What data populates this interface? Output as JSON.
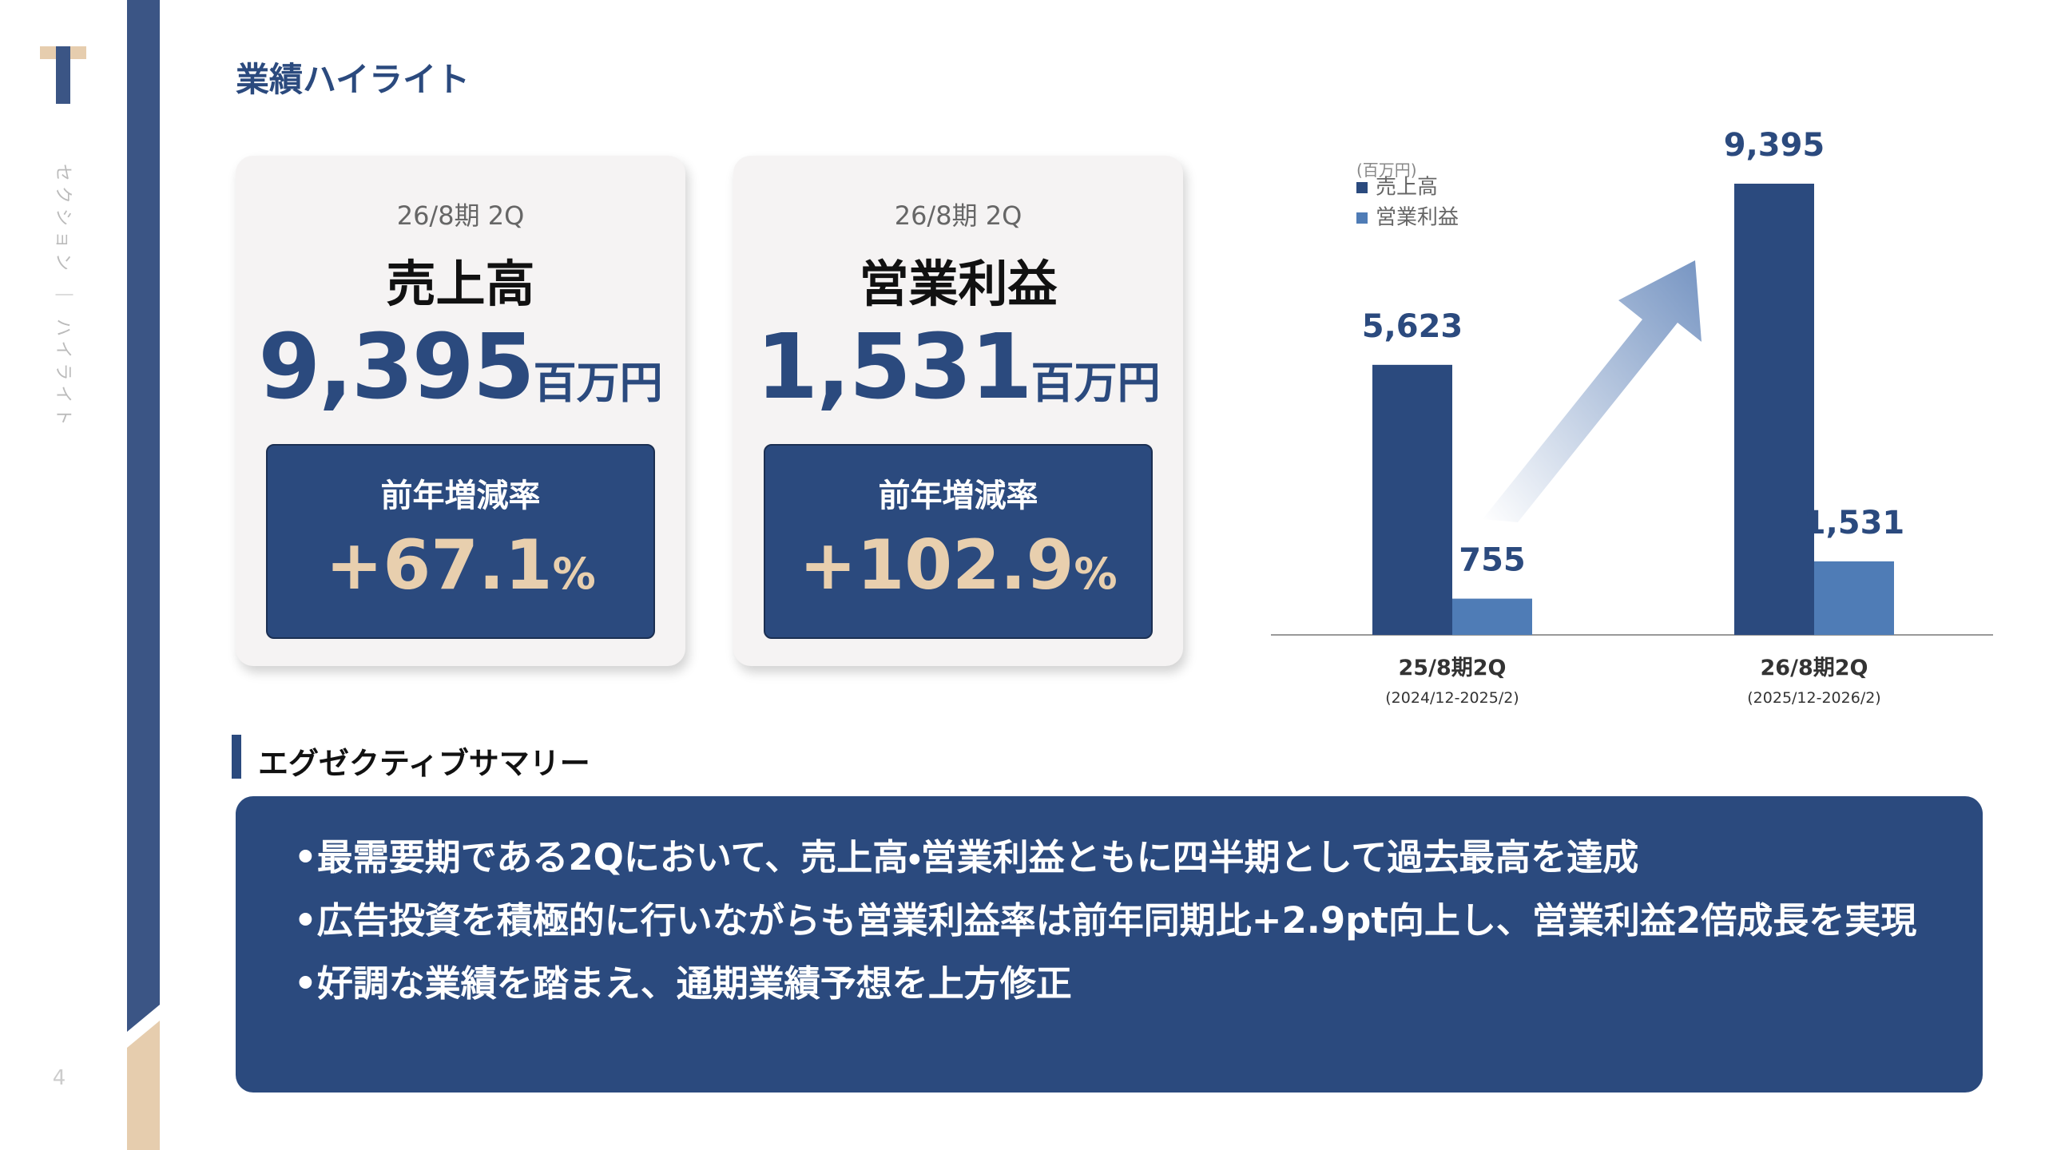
{
  "sidebar": {
    "section_label": "セクション ｜ ハイライト",
    "page_number": "4"
  },
  "title": "業績ハイライト",
  "cards": [
    {
      "period": "26/8期 2Q",
      "metric": "売上高",
      "value": "9,395",
      "unit": "百万円",
      "change_label": "前年増減率",
      "change_value": "+67.1",
      "change_unit": "%"
    },
    {
      "period": "26/8期 2Q",
      "metric": "営業利益",
      "value": "1,531",
      "unit": "百万円",
      "change_label": "前年増減率",
      "change_value": "+102.9",
      "change_unit": "%"
    }
  ],
  "chart": {
    "type": "bar",
    "unit_note": "(百万円)",
    "categories": [
      "25/8期2Q",
      "26/8期2Q"
    ],
    "category_subs": [
      "(2024/12-2025/2)",
      "(2025/12-2026/2)"
    ],
    "series": [
      {
        "name": "売上高",
        "color": "#2b4a7e",
        "values": [
          5623,
          9395
        ],
        "value_labels": [
          "5,623",
          "9,395"
        ]
      },
      {
        "name": "営業利益",
        "color": "#4f7cb6",
        "values": [
          755,
          1531
        ],
        "value_labels": [
          "755",
          "1,531"
        ]
      }
    ]
  },
  "summary": {
    "heading": "エグゼクティブサマリー",
    "bullets": [
      "•最需要期である2Qにおいて、売上高・営業利益ともに四半期として過去最高を達成",
      "•広告投資を積極的に行いながらも営業利益率は前年同期比+2.9pt向上し、営業利益2倍成長を実現",
      "•好調な業績を踏まえ、通期業績予想を上方修正"
    ]
  }
}
